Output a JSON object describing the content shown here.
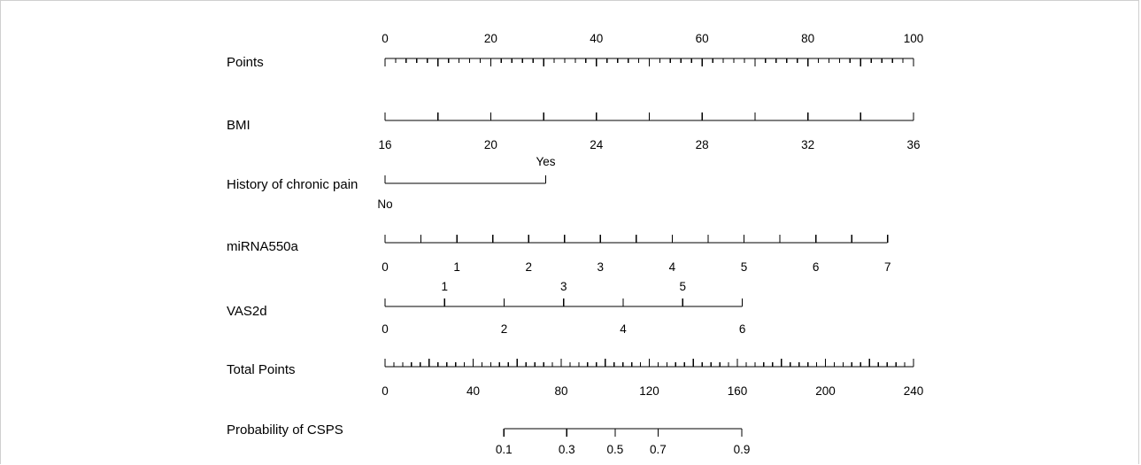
{
  "chart_data": {
    "type": "nomogram",
    "rows": [
      {
        "label": "Points",
        "scale_from": 0,
        "scale_to": 100,
        "major_ticks": [
          0,
          20,
          40,
          60,
          80,
          100
        ],
        "minor_step": 2,
        "tick_labels": [
          "0",
          "20",
          "40",
          "60",
          "80",
          "100"
        ],
        "label_side": "above"
      },
      {
        "label": "BMI",
        "scale_from": 16,
        "scale_to": 36,
        "major_ticks": [
          16,
          18,
          20,
          22,
          24,
          26,
          28,
          30,
          32,
          34,
          36
        ],
        "tick_labels": [
          "16",
          "20",
          "24",
          "28",
          "32",
          "36"
        ],
        "labeled_values": [
          16,
          20,
          24,
          28,
          32,
          36
        ],
        "label_side": "below",
        "points_at_min": 0,
        "points_at_max": 100
      },
      {
        "label": "History of chronic pain",
        "levels": [
          {
            "name": "No",
            "points": 0,
            "label_side": "below"
          },
          {
            "name": "Yes",
            "points": 30.4,
            "label_side": "above"
          }
        ]
      },
      {
        "label": "miRNA550a",
        "scale_from": 0,
        "scale_to": 7,
        "major_ticks": [
          0,
          0.5,
          1,
          1.5,
          2,
          2.5,
          3,
          3.5,
          4,
          4.5,
          5,
          5.5,
          6,
          6.5,
          7
        ],
        "tick_labels": [
          "0",
          "1",
          "2",
          "3",
          "4",
          "5",
          "6",
          "7"
        ],
        "labeled_values": [
          0,
          1,
          2,
          3,
          4,
          5,
          6,
          7
        ],
        "label_side": "below",
        "points_at_min": 0,
        "points_at_max": 95.1
      },
      {
        "label": "VAS2d",
        "scale_from": 0,
        "scale_to": 6,
        "major_ticks": [
          0,
          1,
          2,
          3,
          4,
          5,
          6
        ],
        "above_labels": [
          "1",
          "3",
          "5"
        ],
        "above_values": [
          1,
          3,
          5
        ],
        "below_labels": [
          "0",
          "2",
          "4",
          "6"
        ],
        "below_values": [
          0,
          2,
          4,
          6
        ],
        "points_at_min": 0,
        "points_at_max": 67.6
      },
      {
        "label": "Total Points",
        "scale_from": 0,
        "scale_to": 240,
        "minor_step": 4,
        "major_step": 20,
        "tick_labels": [
          "0",
          "40",
          "80",
          "120",
          "160",
          "200",
          "240"
        ],
        "labeled_values": [
          0,
          40,
          80,
          120,
          160,
          200,
          240
        ],
        "label_side": "below"
      },
      {
        "label": "Probability of CSPS",
        "values": [
          0.1,
          0.3,
          0.5,
          0.7,
          0.9
        ],
        "tick_labels": [
          "0.1",
          "0.3",
          "0.5",
          "0.7",
          "0.9"
        ],
        "total_points_at": [
          54,
          82.5,
          104.5,
          124,
          162
        ],
        "label_side": "below"
      }
    ]
  }
}
